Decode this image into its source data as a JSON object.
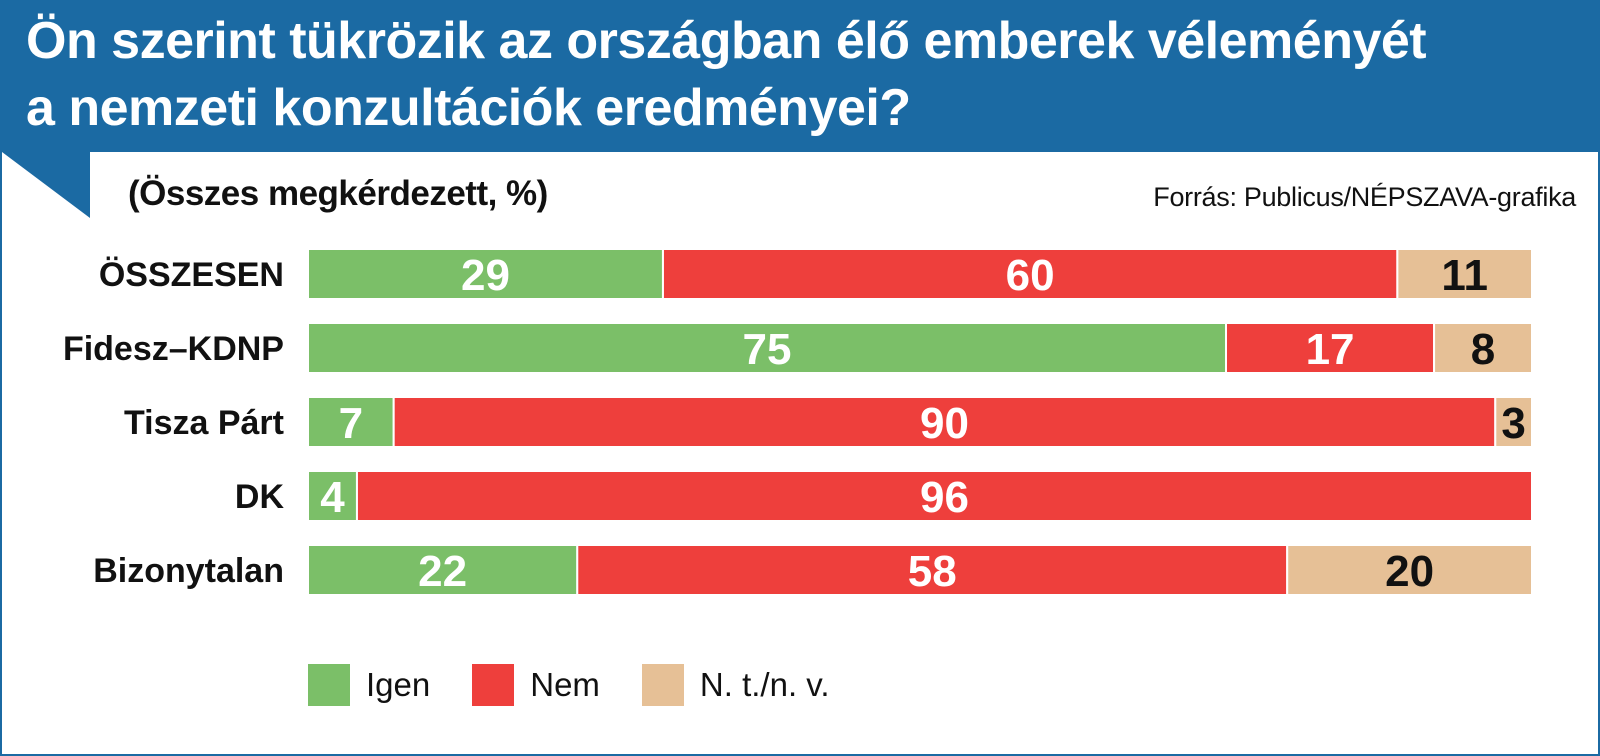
{
  "header": {
    "title_line1": "Ön szerint tükrözik az országban élő emberek véleményét",
    "title_line2": "a nemzeti konzultációk eredményei?"
  },
  "subtitle": "(Összes megkérdezett, %)",
  "source": "Forrás: Publicus/NÉPSZAVA-grafika",
  "colors": {
    "header_bg": "#1b6aa3",
    "igen": "#7bbf68",
    "nem": "#ee3f3c",
    "ntnv": "#e6c096"
  },
  "chart_data": {
    "type": "bar",
    "orientation": "horizontal",
    "stacked": true,
    "title": "Ön szerint tükrözik az országban élő emberek véleményét a nemzeti konzultációk eredményei?",
    "subtitle": "(Összes megkérdezett, %)",
    "categories": [
      "ÖSSZESEN",
      "Fidesz–KDNP",
      "Tisza Párt",
      "DK",
      "Bizonytalan"
    ],
    "series": [
      {
        "name": "Igen",
        "color": "#7bbf68",
        "label_color": "#ffffff",
        "values": [
          29,
          75,
          7,
          4,
          22
        ]
      },
      {
        "name": "Nem",
        "color": "#ee3f3c",
        "label_color": "#ffffff",
        "values": [
          60,
          17,
          90,
          96,
          58
        ]
      },
      {
        "name": "N. t./n. v.",
        "color": "#e6c096",
        "label_color": "#111111",
        "values": [
          11,
          8,
          3,
          null,
          20
        ]
      }
    ],
    "xlim": [
      0,
      100
    ],
    "grid": false,
    "legend": "bottom"
  },
  "legend": {
    "items": [
      {
        "label": "Igen",
        "color": "#7bbf68"
      },
      {
        "label": "Nem",
        "color": "#ee3f3c"
      },
      {
        "label": "N. t./n. v.",
        "color": "#e6c096"
      }
    ]
  }
}
